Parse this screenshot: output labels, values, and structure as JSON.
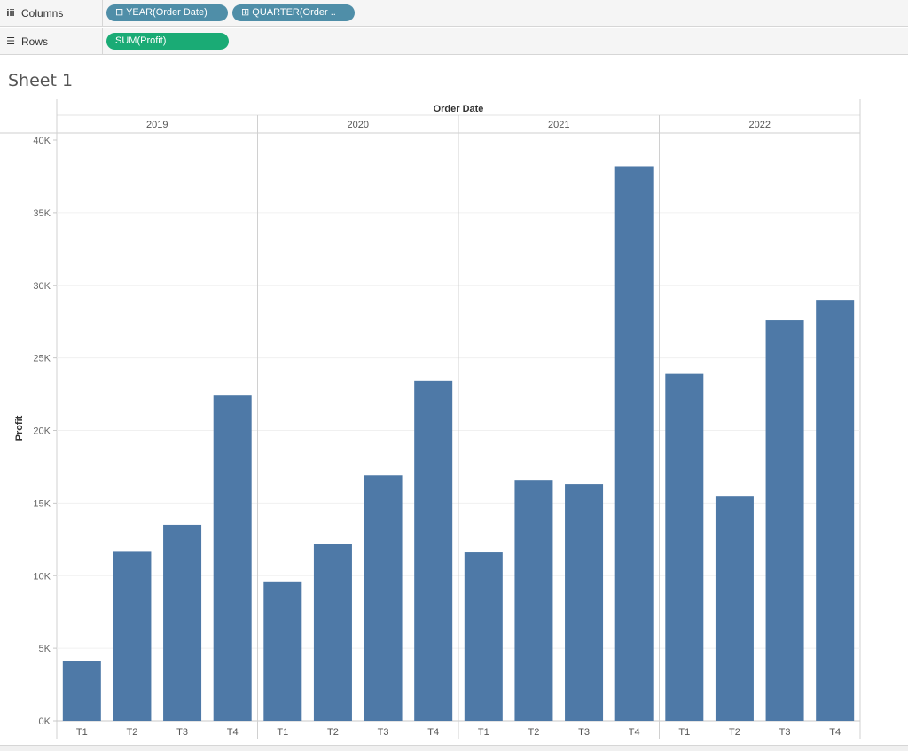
{
  "shelves": {
    "columns": {
      "label": "Columns",
      "icon": "columns-icon",
      "pills": [
        {
          "text": "⊟ YEAR(Order Date)",
          "color": "#4f8ea8"
        },
        {
          "text": "⊞ QUARTER(Order ..",
          "color": "#4f8ea8"
        }
      ]
    },
    "rows": {
      "label": "Rows",
      "icon": "rows-icon",
      "pills": [
        {
          "text": "SUM(Profit)",
          "color": "#1aab75"
        }
      ]
    }
  },
  "sheet": {
    "title": "Sheet 1"
  },
  "chart_data": {
    "type": "bar",
    "column_header": "Order Date",
    "ylabel": "Profit",
    "ylim": [
      0,
      40000
    ],
    "yticks": [
      "0K",
      "5K",
      "10K",
      "15K",
      "20K",
      "25K",
      "30K",
      "35K",
      "40K"
    ],
    "bar_color": "#4e79a7",
    "groups": [
      {
        "year": "2019",
        "quarters": [
          "T1",
          "T2",
          "T3",
          "T4"
        ],
        "values": [
          4100,
          11700,
          13500,
          22400
        ]
      },
      {
        "year": "2020",
        "quarters": [
          "T1",
          "T2",
          "T3",
          "T4"
        ],
        "values": [
          9600,
          12200,
          16900,
          23400
        ]
      },
      {
        "year": "2021",
        "quarters": [
          "T1",
          "T2",
          "T3",
          "T4"
        ],
        "values": [
          11600,
          16600,
          16300,
          38200
        ]
      },
      {
        "year": "2022",
        "quarters": [
          "T1",
          "T2",
          "T3",
          "T4"
        ],
        "values": [
          23900,
          15500,
          27600,
          29000
        ]
      }
    ]
  }
}
